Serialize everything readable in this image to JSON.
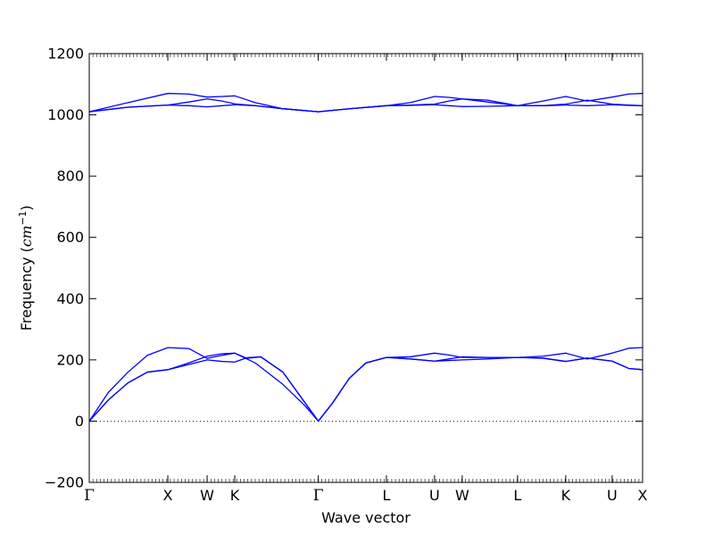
{
  "chart_data": {
    "type": "line",
    "xlabel": "Wave vector",
    "ylabel": "Frequency ",
    "ylabel_unit_base": "cm",
    "ylabel_unit_exp": "−1",
    "ylim": [
      -200,
      1200
    ],
    "yticks": [
      -200,
      0,
      200,
      400,
      600,
      800,
      1000,
      1200
    ],
    "grid": false,
    "zero_line": {
      "y": 0,
      "style": "dotted"
    },
    "color": "#0000ff",
    "x_range": [
      0,
      1
    ],
    "kpoints": [
      {
        "label": "Γ",
        "x": 0.0
      },
      {
        "label": "X",
        "x": 0.142
      },
      {
        "label": "W",
        "x": 0.213
      },
      {
        "label": "K",
        "x": 0.263
      },
      {
        "label": "Γ",
        "x": 0.414
      },
      {
        "label": "L",
        "x": 0.537
      },
      {
        "label": "U",
        "x": 0.624
      },
      {
        "label": "W",
        "x": 0.674
      },
      {
        "label": "L",
        "x": 0.774
      },
      {
        "label": "K",
        "x": 0.861
      },
      {
        "label": "U",
        "x": 0.945
      },
      {
        "label": "X",
        "x": 1.0
      }
    ],
    "series": [
      {
        "points": [
          [
            0,
            0
          ],
          [
            0.035,
            95
          ],
          [
            0.07,
            160
          ],
          [
            0.105,
            215
          ],
          [
            0.142,
            240
          ],
          [
            0.18,
            237
          ],
          [
            0.213,
            205
          ],
          [
            0.24,
            215
          ],
          [
            0.263,
            222
          ],
          [
            0.3,
            190
          ],
          [
            0.35,
            120
          ],
          [
            0.39,
            50
          ],
          [
            0.414,
            0
          ],
          [
            0.44,
            60
          ],
          [
            0.47,
            140
          ],
          [
            0.5,
            190
          ],
          [
            0.537,
            208
          ],
          [
            0.58,
            210
          ],
          [
            0.624,
            222
          ],
          [
            0.65,
            216
          ],
          [
            0.674,
            208
          ],
          [
            0.72,
            208
          ],
          [
            0.774,
            208
          ],
          [
            0.82,
            212
          ],
          [
            0.861,
            222
          ],
          [
            0.9,
            203
          ],
          [
            0.945,
            222
          ],
          [
            0.975,
            238
          ],
          [
            1.0,
            240
          ]
        ]
      },
      {
        "points": [
          [
            0,
            0
          ],
          [
            0.035,
            70
          ],
          [
            0.07,
            125
          ],
          [
            0.105,
            160
          ],
          [
            0.142,
            168
          ],
          [
            0.18,
            190
          ],
          [
            0.213,
            212
          ],
          [
            0.24,
            220
          ],
          [
            0.263,
            222
          ],
          [
            0.285,
            205
          ],
          [
            0.31,
            210
          ],
          [
            0.35,
            160
          ],
          [
            0.39,
            60
          ],
          [
            0.414,
            0
          ],
          [
            0.44,
            60
          ],
          [
            0.47,
            140
          ],
          [
            0.5,
            190
          ],
          [
            0.537,
            208
          ],
          [
            0.58,
            203
          ],
          [
            0.624,
            196
          ],
          [
            0.65,
            203
          ],
          [
            0.674,
            210
          ],
          [
            0.72,
            208
          ],
          [
            0.774,
            208
          ],
          [
            0.82,
            205
          ],
          [
            0.861,
            195
          ],
          [
            0.9,
            206
          ],
          [
            0.945,
            196
          ],
          [
            0.975,
            172
          ],
          [
            1.0,
            168
          ]
        ]
      },
      {
        "points": [
          [
            0,
            0
          ],
          [
            0.035,
            70
          ],
          [
            0.07,
            125
          ],
          [
            0.105,
            160
          ],
          [
            0.142,
            168
          ],
          [
            0.18,
            185
          ],
          [
            0.213,
            200
          ],
          [
            0.24,
            195
          ],
          [
            0.263,
            193
          ],
          [
            0.285,
            207
          ],
          [
            0.31,
            210
          ],
          [
            0.35,
            160
          ],
          [
            0.39,
            60
          ],
          [
            0.414,
            0
          ],
          [
            0.44,
            60
          ],
          [
            0.47,
            140
          ],
          [
            0.5,
            190
          ],
          [
            0.537,
            208
          ],
          [
            0.58,
            203
          ],
          [
            0.624,
            196
          ],
          [
            0.65,
            198
          ],
          [
            0.674,
            200
          ],
          [
            0.72,
            203
          ],
          [
            0.774,
            208
          ],
          [
            0.82,
            206
          ],
          [
            0.861,
            195
          ],
          [
            0.9,
            206
          ],
          [
            0.945,
            196
          ],
          [
            0.975,
            172
          ],
          [
            1.0,
            168
          ]
        ]
      },
      {
        "points": [
          [
            0,
            1010
          ],
          [
            0.07,
            1040
          ],
          [
            0.142,
            1070
          ],
          [
            0.18,
            1068
          ],
          [
            0.213,
            1058
          ],
          [
            0.24,
            1060
          ],
          [
            0.263,
            1062
          ],
          [
            0.3,
            1040
          ],
          [
            0.35,
            1020
          ],
          [
            0.414,
            1010
          ],
          [
            0.47,
            1020
          ],
          [
            0.537,
            1030
          ],
          [
            0.58,
            1040
          ],
          [
            0.624,
            1060
          ],
          [
            0.65,
            1057
          ],
          [
            0.674,
            1052
          ],
          [
            0.72,
            1042
          ],
          [
            0.774,
            1030
          ],
          [
            0.82,
            1045
          ],
          [
            0.861,
            1060
          ],
          [
            0.9,
            1045
          ],
          [
            0.945,
            1058
          ],
          [
            0.975,
            1068
          ],
          [
            1.0,
            1070
          ]
        ]
      },
      {
        "points": [
          [
            0,
            1010
          ],
          [
            0.07,
            1025
          ],
          [
            0.142,
            1032
          ],
          [
            0.18,
            1042
          ],
          [
            0.213,
            1052
          ],
          [
            0.24,
            1045
          ],
          [
            0.263,
            1036
          ],
          [
            0.3,
            1030
          ],
          [
            0.35,
            1020
          ],
          [
            0.414,
            1010
          ],
          [
            0.47,
            1020
          ],
          [
            0.537,
            1030
          ],
          [
            0.58,
            1032
          ],
          [
            0.624,
            1035
          ],
          [
            0.65,
            1045
          ],
          [
            0.674,
            1052
          ],
          [
            0.72,
            1048
          ],
          [
            0.774,
            1030
          ],
          [
            0.82,
            1030
          ],
          [
            0.861,
            1035
          ],
          [
            0.9,
            1048
          ],
          [
            0.945,
            1035
          ],
          [
            0.975,
            1032
          ],
          [
            1.0,
            1030
          ]
        ]
      },
      {
        "points": [
          [
            0,
            1010
          ],
          [
            0.07,
            1025
          ],
          [
            0.142,
            1032
          ],
          [
            0.18,
            1030
          ],
          [
            0.213,
            1026
          ],
          [
            0.24,
            1030
          ],
          [
            0.263,
            1033
          ],
          [
            0.3,
            1030
          ],
          [
            0.35,
            1020
          ],
          [
            0.414,
            1010
          ],
          [
            0.47,
            1020
          ],
          [
            0.537,
            1030
          ],
          [
            0.58,
            1031
          ],
          [
            0.624,
            1033
          ],
          [
            0.65,
            1030
          ],
          [
            0.674,
            1027
          ],
          [
            0.72,
            1028
          ],
          [
            0.774,
            1030
          ],
          [
            0.82,
            1030
          ],
          [
            0.861,
            1032
          ],
          [
            0.9,
            1030
          ],
          [
            0.945,
            1033
          ],
          [
            0.975,
            1031
          ],
          [
            1.0,
            1030
          ]
        ]
      }
    ]
  }
}
